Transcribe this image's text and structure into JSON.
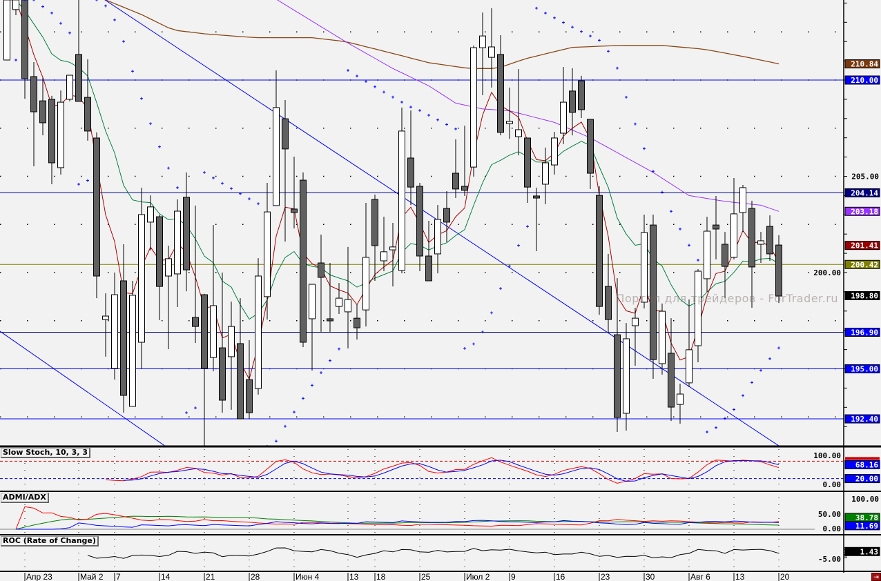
{
  "panels": {
    "stoch_title": "Slow Stoch, 10, 3, 3",
    "adx_title": "ADMI/ADX",
    "roc_title": "ROC (Rate of Change)"
  },
  "watermark": "Портал для трейдеров - ForTrader.ru",
  "icons": {
    "exit": "exit-icon"
  },
  "chart_data": {
    "type": "candlestick",
    "ylim": [
      190.9,
      214.2
    ],
    "y_ticks": [
      "205.00",
      "200.00"
    ],
    "x_labels": [
      {
        "label": "Апр 23",
        "bar": 2
      },
      {
        "label": "Май 2",
        "bar": 8
      },
      {
        "label": "7",
        "bar": 12
      },
      {
        "label": "14",
        "bar": 17
      },
      {
        "label": "21",
        "bar": 22
      },
      {
        "label": "28",
        "bar": 27
      },
      {
        "label": "Июн 4",
        "bar": 32
      },
      {
        "label": "13",
        "bar": 38
      },
      {
        "label": "18",
        "bar": 41
      },
      {
        "label": "25",
        "bar": 46
      },
      {
        "label": "Июл 2",
        "bar": 51
      },
      {
        "label": "9",
        "bar": 56
      },
      {
        "label": "16",
        "bar": 61
      },
      {
        "label": "23",
        "bar": 66
      },
      {
        "label": "30",
        "bar": 71
      },
      {
        "label": "Авг 6",
        "bar": 76
      },
      {
        "label": "13",
        "bar": 81
      },
      {
        "label": "20",
        "bar": 86
      }
    ],
    "ohlc_fields": [
      "open",
      "high",
      "low",
      "close"
    ],
    "candles": [
      [
        211.04,
        214.16,
        211.04,
        214.16
      ],
      [
        213.66,
        214.16,
        213.37,
        214.16
      ],
      [
        214.16,
        214.16,
        209.03,
        210.07
      ],
      [
        210.18,
        210.93,
        205.52,
        208.35
      ],
      [
        208.92,
        210.11,
        207.13,
        207.78
      ],
      [
        209.0,
        209.18,
        204.59,
        205.7
      ],
      [
        205.45,
        209.46,
        205.09,
        208.85
      ],
      [
        209.0,
        210.25,
        208.89,
        210.25
      ],
      [
        211.33,
        214.16,
        208.89,
        208.89
      ],
      [
        209.1,
        211.08,
        206.85,
        207.35
      ],
      [
        206.99,
        207.28,
        198.67,
        199.82
      ],
      [
        197.56,
        198.92,
        195.63,
        197.74
      ],
      [
        195.02,
        200.0,
        194.44,
        198.85
      ],
      [
        199.57,
        201.47,
        192.72,
        193.62
      ],
      [
        193.05,
        199.57,
        193.05,
        198.82
      ],
      [
        196.38,
        204.41,
        195.02,
        203.01
      ],
      [
        202.62,
        204.01,
        201.15,
        203.41
      ],
      [
        202.9,
        203.01,
        197.53,
        199.28
      ],
      [
        199.82,
        201.4,
        196.02,
        200.72
      ],
      [
        199.93,
        203.8,
        198.21,
        203.19
      ],
      [
        203.91,
        205.2,
        199.03,
        200.14
      ],
      [
        197.67,
        203.48,
        196.34,
        197.2
      ],
      [
        198.85,
        198.9,
        190.97,
        195.02
      ],
      [
        195.59,
        202.47,
        194.87,
        198.28
      ],
      [
        196.09,
        200.0,
        192.72,
        193.37
      ],
      [
        195.63,
        198.49,
        192.87,
        197.2
      ],
      [
        196.31,
        198.67,
        192.4,
        192.4
      ],
      [
        194.44,
        196.49,
        192.4,
        192.72
      ],
      [
        193.98,
        200.75,
        193.66,
        199.82
      ],
      [
        198.75,
        204.66,
        197.56,
        203.15
      ],
      [
        203.48,
        210.5,
        203.48,
        208.57
      ],
      [
        207.99,
        208.96,
        201.61,
        206.42
      ],
      [
        203.3,
        206.02,
        202.29,
        203.12
      ],
      [
        204.8,
        205.2,
        196.13,
        196.38
      ],
      [
        197.6,
        199.39,
        194.91,
        199.39
      ],
      [
        200.5,
        201.97,
        196.92,
        199.75
      ],
      [
        197.6,
        200.5,
        196.92,
        197.49
      ],
      [
        198.24,
        199.46,
        197.85,
        198.67
      ],
      [
        197.96,
        201.33,
        196.06,
        198.6
      ],
      [
        197.63,
        198.35,
        196.52,
        197.13
      ],
      [
        198.06,
        203.62,
        197.2,
        200.79
      ],
      [
        203.8,
        204.05,
        199.57,
        201.4
      ],
      [
        200.61,
        202.9,
        200.07,
        201.08
      ],
      [
        201.18,
        202.58,
        199.28,
        201.33
      ],
      [
        200.11,
        208.57,
        199.96,
        207.35
      ],
      [
        205.95,
        208.42,
        203.51,
        204.44
      ],
      [
        204.48,
        204.66,
        200.07,
        200.86
      ],
      [
        200.86,
        202.69,
        199.57,
        199.57
      ],
      [
        200.97,
        203.51,
        199.96,
        202.76
      ],
      [
        203.33,
        204.23,
        201.58,
        202.62
      ],
      [
        205.16,
        206.92,
        203.87,
        204.34
      ],
      [
        204.48,
        207.63,
        203.98,
        204.27
      ],
      [
        205.48,
        211.79,
        204.98,
        211.68
      ],
      [
        211.68,
        213.51,
        209.21,
        212.29
      ],
      [
        211.18,
        213.73,
        209.61,
        211.72
      ],
      [
        211.33,
        212.33,
        207.13,
        207.28
      ],
      [
        207.74,
        209.61,
        206.95,
        207.85
      ],
      [
        207.06,
        210.57,
        206.09,
        207.42
      ],
      [
        206.99,
        206.99,
        203.62,
        204.44
      ],
      [
        203.98,
        204.41,
        201.11,
        203.87
      ],
      [
        204.59,
        206.49,
        203.55,
        205.7
      ],
      [
        205.59,
        207.31,
        205.09,
        206.99
      ],
      [
        207.24,
        210.68,
        206.67,
        208.85
      ],
      [
        209.43,
        210.61,
        207.13,
        208.32
      ],
      [
        209.96,
        210.22,
        208.03,
        208.46
      ],
      [
        207.96,
        207.96,
        204.34,
        205.16
      ],
      [
        204.01,
        204.48,
        197.81,
        198.24
      ],
      [
        199.28,
        200.97,
        196.88,
        197.56
      ],
      [
        196.77,
        199.71,
        191.72,
        192.47
      ],
      [
        192.69,
        197.38,
        191.79,
        196.56
      ],
      [
        197.24,
        198.17,
        195.16,
        197.63
      ],
      [
        198.46,
        203.01,
        198.14,
        202.08
      ],
      [
        202.47,
        203.01,
        194.48,
        195.48
      ],
      [
        195.27,
        198.39,
        194.7,
        197.99
      ],
      [
        195.81,
        197.63,
        192.29,
        193.01
      ],
      [
        193.15,
        194.23,
        192.15,
        193.69
      ],
      [
        194.27,
        198.6,
        194.05,
        195.99
      ],
      [
        196.2,
        200.18,
        195.34,
        200.07
      ],
      [
        199.68,
        202.9,
        198.99,
        202.15
      ],
      [
        202.47,
        203.98,
        200.68,
        202.26
      ],
      [
        201.47,
        202.11,
        198.67,
        200.32
      ],
      [
        200.79,
        204.91,
        200.68,
        203.05
      ],
      [
        203.12,
        204.55,
        202.11,
        204.41
      ],
      [
        203.33,
        203.73,
        198.17,
        200.29
      ],
      [
        201.47,
        202.11,
        200.5,
        201.65
      ],
      [
        202.4,
        202.97,
        200.61,
        200.97
      ],
      [
        201.43,
        201.94,
        198.42,
        198.78
      ]
    ],
    "colors": {
      "up": "#ffffff",
      "down": "#606060",
      "sar": "#0000ff",
      "ma_fast": "#aa0000",
      "ma_mid": "#008040",
      "ma_slow": "#9933ff",
      "ma_long": "#8b4513"
    },
    "ma_slow_points": [
      [
        30,
        214.2
      ],
      [
        37.7,
        212.0
      ],
      [
        43,
        210.6
      ],
      [
        47,
        209.7
      ],
      [
        50,
        208.8
      ],
      [
        53,
        208.5
      ],
      [
        56,
        208.4
      ],
      [
        61,
        207.8
      ],
      [
        65,
        207.0
      ],
      [
        68.5,
        206.1
      ],
      [
        72,
        205.2
      ],
      [
        76,
        204.0
      ],
      [
        80,
        203.7
      ],
      [
        84,
        203.5
      ],
      [
        86,
        203.18
      ]
    ],
    "ma_long_points": [
      [
        10.8,
        214.2
      ],
      [
        15,
        213.4
      ],
      [
        18.5,
        212.6
      ],
      [
        22,
        212.4
      ],
      [
        27.7,
        212.2
      ],
      [
        34,
        212.2
      ],
      [
        37.7,
        212.0
      ],
      [
        42,
        211.5
      ],
      [
        47,
        210.9
      ],
      [
        51.5,
        210.6
      ],
      [
        54.6,
        210.6
      ],
      [
        57.7,
        211.1
      ],
      [
        63,
        211.7
      ],
      [
        68.5,
        211.8
      ],
      [
        73,
        211.8
      ],
      [
        77.7,
        211.6
      ],
      [
        82.3,
        211.2
      ],
      [
        86,
        210.84
      ]
    ],
    "horizontal_lines": [
      {
        "price": 210.0,
        "color": "#0000ff"
      },
      {
        "price": 204.14,
        "color": "#000080"
      },
      {
        "price": 200.42,
        "color": "#808000"
      },
      {
        "price": 196.9,
        "color": "#000080"
      },
      {
        "price": 195.0,
        "color": "#0000ff"
      },
      {
        "price": 192.4,
        "color": "#0000ff"
      }
    ],
    "trendlines": [
      {
        "from": [
          10.8,
          214.2
        ],
        "to": [
          86,
          191.0
        ],
        "color": "#0000ff"
      },
      {
        "from": [
          -0.77,
          196.95
        ],
        "to": [
          17.9,
          190.9
        ],
        "color": "#0000ff"
      }
    ],
    "price_labels": [
      {
        "text": "210.84",
        "price": 210.84,
        "bg": "#7a3a10"
      },
      {
        "text": "210.00",
        "price": 210.0,
        "bg": "#0000ff"
      },
      {
        "text": "204.14",
        "price": 204.14,
        "bg": "#000080"
      },
      {
        "text": "203.18",
        "price": 203.18,
        "bg": "#9933ff"
      },
      {
        "text": "201.41",
        "price": 201.41,
        "bg": "#990000"
      },
      {
        "text": "200.42",
        "price": 200.42,
        "bg": "#808000"
      },
      {
        "text": "198.80",
        "price": 198.8,
        "bg": "#000000"
      },
      {
        "text": "196.90",
        "price": 196.9,
        "bg": "#0000ff"
      },
      {
        "text": "195.00",
        "price": 195.0,
        "bg": "#0000ff"
      },
      {
        "text": "192.40",
        "price": 192.4,
        "bg": "#0000ff"
      }
    ],
    "stochastic": {
      "params": [
        10,
        3,
        3
      ],
      "levels": [
        80,
        20
      ],
      "ticks": [
        "100.00",
        "0.00"
      ],
      "labels": [
        {
          "text": "68.16",
          "value": 68.16,
          "bg": "#0000ff"
        },
        {
          "text": "20.00",
          "value": 20,
          "bg": "#0000ff"
        }
      ],
      "colors": [
        "#ff0000",
        "#0000ff"
      ]
    },
    "dmi": {
      "period": 14,
      "ticks": [
        "100.00",
        "50.00",
        "0.00"
      ],
      "labels": [
        {
          "text": "38.78",
          "value": 38.78,
          "bg": "#008000"
        },
        {
          "text": "11.69",
          "value": 11.69,
          "bg": "#0000ff"
        }
      ],
      "colors": {
        "adx": "#008000",
        "plus_di": "#0000ff",
        "minus_di": "#ff0000"
      }
    },
    "roc": {
      "period": 9,
      "ticks": [
        "-5.00"
      ],
      "labels": [
        {
          "text": "1.43",
          "value": 1.43,
          "bg": "#000000"
        }
      ]
    }
  }
}
